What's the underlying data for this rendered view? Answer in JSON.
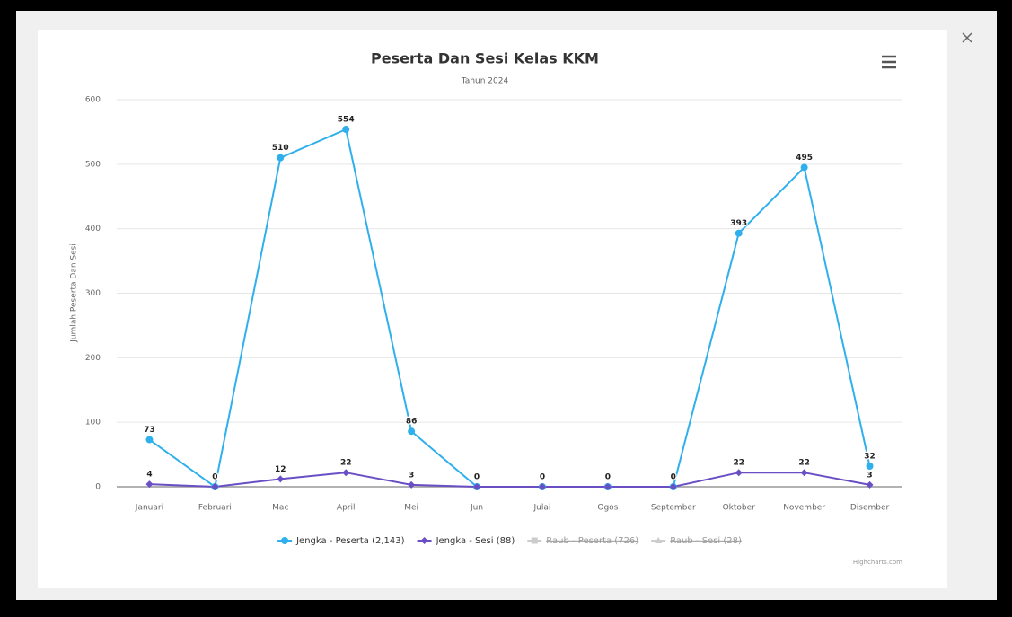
{
  "chart_data": {
    "type": "line",
    "title": "Peserta Dan Sesi Kelas KKM",
    "subtitle": "Tahun 2024",
    "y_axis_label": "Jumlah Peserta Dan Sesi",
    "categories": [
      "Januari",
      "Februari",
      "Mac",
      "April",
      "Mei",
      "Jun",
      "Julai",
      "Ogos",
      "September",
      "Oktober",
      "November",
      "Disember"
    ],
    "series": [
      {
        "name": "Jengka - Peserta (2,143)",
        "color": "#2fb0ec",
        "marker": "circle",
        "visible": true,
        "values": [
          73,
          0,
          510,
          554,
          86,
          0,
          0,
          0,
          0,
          393,
          495,
          32
        ]
      },
      {
        "name": "Jengka - Sesi (88)",
        "color": "#6a4fc4",
        "marker": "diamond",
        "visible": true,
        "values": [
          4,
          0,
          12,
          22,
          3,
          0,
          0,
          0,
          0,
          22,
          22,
          3
        ]
      },
      {
        "name": "Raub - Peserta (726)",
        "color": "#cccccc",
        "marker": "square",
        "visible": false
      },
      {
        "name": "Raub - Sesi (28)",
        "color": "#cccccc",
        "marker": "triangle",
        "visible": false
      }
    ],
    "ylim": [
      0,
      600
    ],
    "yticks": [
      0,
      100,
      200,
      300,
      400,
      500,
      600
    ],
    "grid": true,
    "data_labels": true,
    "legend": "bottom",
    "credits": "Highcharts.com"
  }
}
